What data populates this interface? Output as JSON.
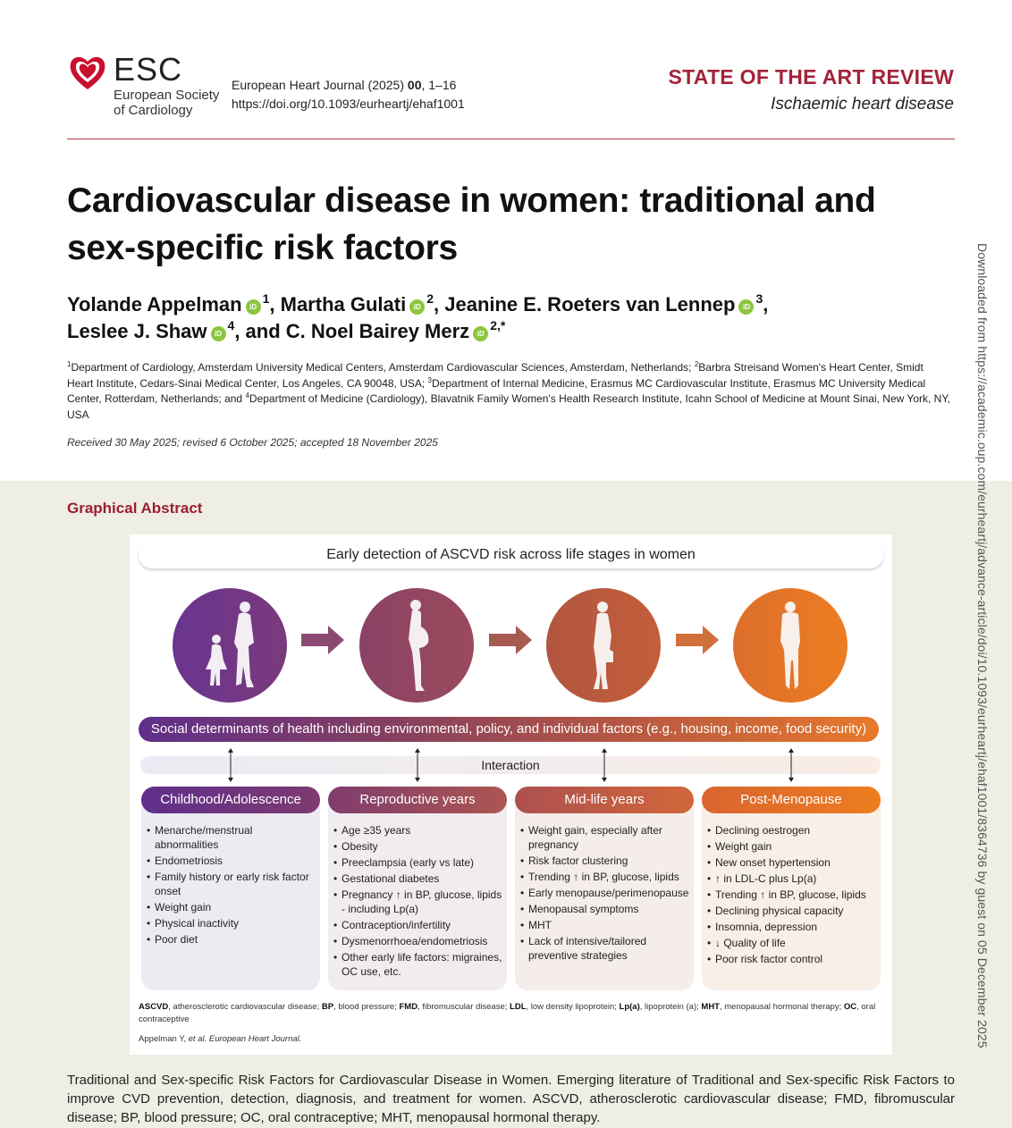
{
  "header": {
    "logo": {
      "abbr": "ESC",
      "line1": "European Society",
      "line2": "of Cardiology",
      "icon": "heart-icon",
      "color": "#c8102e"
    },
    "journal": {
      "name": "European Heart Journal (2025) ",
      "volume": "00",
      "pages": ", 1–16",
      "doi": "https://doi.org/10.1093/eurheartj/ehaf1001"
    },
    "article_type": "STATE OF THE ART REVIEW",
    "section": "Ischaemic heart disease",
    "accent_color": "#a3233a"
  },
  "article": {
    "title": "Cardiovascular disease in women: traditional and sex-specific risk factors",
    "authors": [
      {
        "name": "Yolande Appelman",
        "aff": "1",
        "sep": ", "
      },
      {
        "name": "Martha Gulati",
        "aff": "2",
        "sep": ", "
      },
      {
        "name": "Jeanine E. Roeters van Lennep",
        "aff": "3",
        "sep": ","
      },
      {
        "name": "Leslee J. Shaw",
        "aff": "4",
        "sep": ", and "
      },
      {
        "name": "C. Noel Bairey Merz",
        "aff": "2,*",
        "sep": ""
      }
    ],
    "orcid_label": "iD",
    "affiliations": [
      {
        "num": "1",
        "text": "Department of Cardiology, Amsterdam University Medical Centers, Amsterdam Cardiovascular Sciences, Amsterdam, Netherlands; "
      },
      {
        "num": "2",
        "text": "Barbra Streisand Women's Heart Center, Smidt Heart Institute, Cedars-Sinai Medical Center, Los Angeles, CA 90048, USA; "
      },
      {
        "num": "3",
        "text": "Department of Internal Medicine, Erasmus MC Cardiovascular Institute, Erasmus MC University Medical Center, Rotterdam, Netherlands; and "
      },
      {
        "num": "4",
        "text": "Department of Medicine (Cardiology), Blavatnik Family Women's Health Research Institute, Icahn School of Medicine at Mount Sinai, New York, NY, USA"
      }
    ],
    "dates": "Received 30 May 2025; revised 6 October 2025; accepted 18 November 2025"
  },
  "graphical_abstract": {
    "heading": "Graphical Abstract",
    "banner": "Early detection of ASCVD risk across life stages in women",
    "stages": [
      {
        "icon": "mother-daughter-silhouette-icon",
        "color": "#6a3590",
        "color2": "#7a3a7c"
      },
      {
        "icon": "pregnant-woman-silhouette-icon",
        "color": "#8b4265",
        "color2": "#9a4a5d"
      },
      {
        "icon": "working-woman-silhouette-icon",
        "color": "#b2563f",
        "color2": "#c35e3b"
      },
      {
        "icon": "older-woman-silhouette-icon",
        "color": "#dd6e2c",
        "color2": "#ec7d22"
      }
    ],
    "arrow_colors": [
      "#8a4a72",
      "#a65a52",
      "#d0703c"
    ],
    "sdoh": "Social determinants of health including environmental, policy, and individual factors (e.g., housing, income, food security)",
    "interaction": "Interaction",
    "columns": [
      {
        "title": "Childhood/Adolescence",
        "head_from": "#5f2f8a",
        "head_to": "#7e3a72",
        "bg": "#ecebf2",
        "items": [
          "Menarche/menstrual abnormalities",
          "Endometriosis",
          "Family history or early risk factor onset",
          "Weight gain",
          "Physical inactivity",
          "Poor diet"
        ]
      },
      {
        "title": "Reproductive years",
        "head_from": "#7f3c6e",
        "head_to": "#ad5650",
        "bg": "#f1ecef",
        "items": [
          "Age ≥35 years",
          "Obesity",
          "Preeclampsia (early vs late)",
          "Gestational diabetes",
          "Pregnancy ↑ in BP, glucose, lipids - including Lp(a)",
          "Contraception/infertility",
          "Dysmenorrhoea/endometriosis",
          "Other early life factors: migraines, OC use, etc."
        ]
      },
      {
        "title": "Mid-life years",
        "head_from": "#ad5050",
        "head_to": "#d2673a",
        "bg": "#f4ede9",
        "items": [
          "Weight gain, especially after pregnancy",
          "Risk factor clustering",
          "Trending ↑ in BP, glucose, lipids",
          "Early menopause/perimenopause",
          "Menopausal symptoms",
          "MHT",
          "Lack of intensive/tailored preventive strategies"
        ]
      },
      {
        "title": "Post-Menopause",
        "head_from": "#d9652f",
        "head_to": "#ee7d1f",
        "bg": "#f8efe7",
        "items": [
          "Declining oestrogen",
          "Weight gain",
          "New onset hypertension",
          "↑ in LDL-C plus Lp(a)",
          "Trending ↑ in BP, glucose, lipids",
          "Declining physical capacity",
          "Insomnia, depression",
          "↓ Quality of life",
          "Poor risk factor control"
        ]
      }
    ],
    "abbreviations": [
      {
        "abbr": "ASCVD",
        "def": ", atherosclerotic cardiovascular disease; "
      },
      {
        "abbr": "BP",
        "def": ", blood pressure; "
      },
      {
        "abbr": "FMD",
        "def": ", fibromuscular disease; "
      },
      {
        "abbr": "LDL",
        "def": ", low density lipoprotein; "
      },
      {
        "abbr": "Lp(a)",
        "def": ",  lipoprotein (a); "
      },
      {
        "abbr": "MHT",
        "def": ", menopausal hormonal therapy; "
      },
      {
        "abbr": "OC",
        "def": ", oral contraceptive"
      }
    ],
    "credit_author": "Appelman Y, ",
    "credit_etal": "et al. European Heart Journal."
  },
  "caption": "Traditional and Sex-specific Risk Factors for Cardiovascular Disease in Women. Emerging literature of Traditional and Sex-specific Risk Factors to improve CVD prevention, detection, diagnosis, and treatment for women. ASCVD, atherosclerotic cardiovascular disease; FMD, fibromuscular disease; BP, blood pressure; OC, oral contraceptive; MHT, menopausal hormonal therapy.",
  "side_note": "Downloaded from https://academic.oup.com/eurheartj/advance-article/doi/10.1093/eurheartj/ehaf1001/8364736 by guest on 05 December 2025"
}
